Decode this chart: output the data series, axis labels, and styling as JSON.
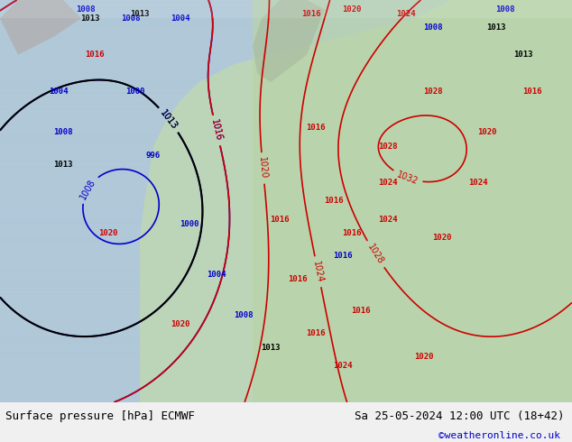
{
  "title_left": "Surface pressure [hPa] ECMWF",
  "title_right": "Sa 25-05-2024 12:00 UTC (18+42)",
  "credit": "©weatheronline.co.uk",
  "bg_color": "#f0f0f0",
  "map_bg_color": "#a8d8a8",
  "sea_color": "#d0e8f0",
  "land_color": "#c8e6c8",
  "contour_colors": {
    "low": "#0000cc",
    "mid": "#000000",
    "high": "#cc0000"
  },
  "footer_bg": "#e8e8e8",
  "figsize": [
    6.34,
    4.9
  ],
  "dpi": 100
}
